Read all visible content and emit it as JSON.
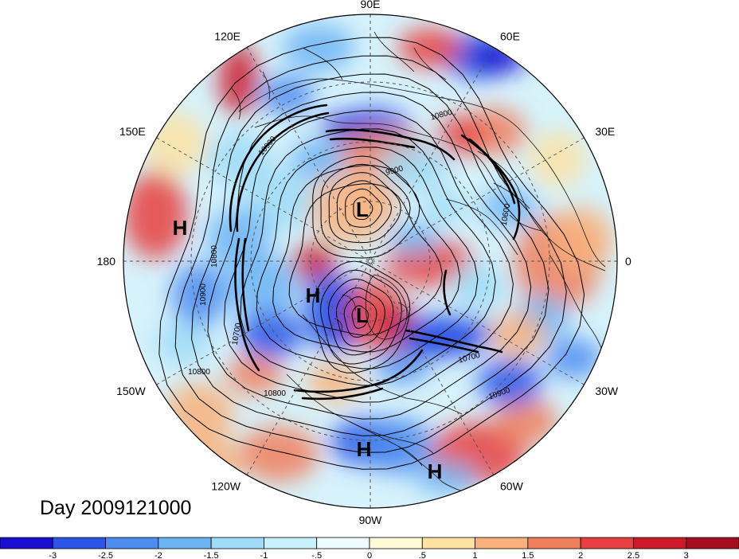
{
  "map": {
    "day_label": "Day 2009121000",
    "longitude_labels": [
      {
        "name": "90E",
        "deg": 90
      },
      {
        "name": "60E",
        "deg": 60
      },
      {
        "name": "30E",
        "deg": 30
      },
      {
        "name": "0",
        "deg": 0
      },
      {
        "name": "30W",
        "deg": -30
      },
      {
        "name": "60W",
        "deg": -60
      },
      {
        "name": "90W",
        "deg": -90
      },
      {
        "name": "120W",
        "deg": -120
      },
      {
        "name": "150W",
        "deg": -150
      },
      {
        "name": "180",
        "deg": 180
      },
      {
        "name": "150E",
        "deg": 150
      },
      {
        "name": "120E",
        "deg": 120
      }
    ],
    "pressure_centers": [
      {
        "label": "L",
        "kind": "low"
      },
      {
        "label": "L",
        "kind": "low"
      },
      {
        "label": "H",
        "kind": "high"
      },
      {
        "label": "H",
        "kind": "high"
      },
      {
        "label": "H",
        "kind": "high"
      },
      {
        "label": "H",
        "kind": "high"
      }
    ],
    "contour_labels": [
      "10800",
      "10900",
      "9900",
      "10600",
      "10800",
      "10900",
      "10700",
      "10900",
      "10800",
      "10700",
      "10800"
    ]
  },
  "colorbar": {
    "ticks": [
      "-3",
      "-2.5",
      "-2",
      "-1.5",
      "-1",
      "-.5",
      "0",
      ".5",
      "1",
      "1.5",
      "2",
      "2.5",
      "3"
    ],
    "colors": [
      "#1a0fd0",
      "#2a55e8",
      "#4d8cf0",
      "#6db4f5",
      "#9fdcf7",
      "#c9f1fb",
      "#eefcff",
      "#fffbd8",
      "#fde2a2",
      "#f8b17c",
      "#f07f5e",
      "#e84040",
      "#cc1a2a",
      "#a50d1f"
    ]
  }
}
